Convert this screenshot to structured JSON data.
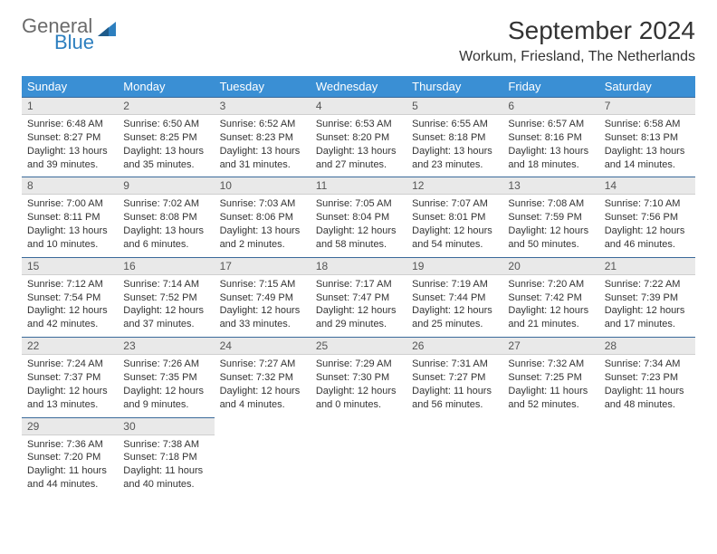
{
  "logo": {
    "line1": "General",
    "line2": "Blue",
    "shape_color": "#2d7fbf"
  },
  "title": "September 2024",
  "location": "Workum, Friesland, The Netherlands",
  "headers_bg": "#3a8fd4",
  "daynum_bg": "#e9e9e9",
  "daynum_border_top": "#3a6a9a",
  "day_names": [
    "Sunday",
    "Monday",
    "Tuesday",
    "Wednesday",
    "Thursday",
    "Friday",
    "Saturday"
  ],
  "weeks": [
    [
      {
        "n": "1",
        "sunrise": "6:48 AM",
        "sunset": "8:27 PM",
        "daylight": "13 hours and 39 minutes."
      },
      {
        "n": "2",
        "sunrise": "6:50 AM",
        "sunset": "8:25 PM",
        "daylight": "13 hours and 35 minutes."
      },
      {
        "n": "3",
        "sunrise": "6:52 AM",
        "sunset": "8:23 PM",
        "daylight": "13 hours and 31 minutes."
      },
      {
        "n": "4",
        "sunrise": "6:53 AM",
        "sunset": "8:20 PM",
        "daylight": "13 hours and 27 minutes."
      },
      {
        "n": "5",
        "sunrise": "6:55 AM",
        "sunset": "8:18 PM",
        "daylight": "13 hours and 23 minutes."
      },
      {
        "n": "6",
        "sunrise": "6:57 AM",
        "sunset": "8:16 PM",
        "daylight": "13 hours and 18 minutes."
      },
      {
        "n": "7",
        "sunrise": "6:58 AM",
        "sunset": "8:13 PM",
        "daylight": "13 hours and 14 minutes."
      }
    ],
    [
      {
        "n": "8",
        "sunrise": "7:00 AM",
        "sunset": "8:11 PM",
        "daylight": "13 hours and 10 minutes."
      },
      {
        "n": "9",
        "sunrise": "7:02 AM",
        "sunset": "8:08 PM",
        "daylight": "13 hours and 6 minutes."
      },
      {
        "n": "10",
        "sunrise": "7:03 AM",
        "sunset": "8:06 PM",
        "daylight": "13 hours and 2 minutes."
      },
      {
        "n": "11",
        "sunrise": "7:05 AM",
        "sunset": "8:04 PM",
        "daylight": "12 hours and 58 minutes."
      },
      {
        "n": "12",
        "sunrise": "7:07 AM",
        "sunset": "8:01 PM",
        "daylight": "12 hours and 54 minutes."
      },
      {
        "n": "13",
        "sunrise": "7:08 AM",
        "sunset": "7:59 PM",
        "daylight": "12 hours and 50 minutes."
      },
      {
        "n": "14",
        "sunrise": "7:10 AM",
        "sunset": "7:56 PM",
        "daylight": "12 hours and 46 minutes."
      }
    ],
    [
      {
        "n": "15",
        "sunrise": "7:12 AM",
        "sunset": "7:54 PM",
        "daylight": "12 hours and 42 minutes."
      },
      {
        "n": "16",
        "sunrise": "7:14 AM",
        "sunset": "7:52 PM",
        "daylight": "12 hours and 37 minutes."
      },
      {
        "n": "17",
        "sunrise": "7:15 AM",
        "sunset": "7:49 PM",
        "daylight": "12 hours and 33 minutes."
      },
      {
        "n": "18",
        "sunrise": "7:17 AM",
        "sunset": "7:47 PM",
        "daylight": "12 hours and 29 minutes."
      },
      {
        "n": "19",
        "sunrise": "7:19 AM",
        "sunset": "7:44 PM",
        "daylight": "12 hours and 25 minutes."
      },
      {
        "n": "20",
        "sunrise": "7:20 AM",
        "sunset": "7:42 PM",
        "daylight": "12 hours and 21 minutes."
      },
      {
        "n": "21",
        "sunrise": "7:22 AM",
        "sunset": "7:39 PM",
        "daylight": "12 hours and 17 minutes."
      }
    ],
    [
      {
        "n": "22",
        "sunrise": "7:24 AM",
        "sunset": "7:37 PM",
        "daylight": "12 hours and 13 minutes."
      },
      {
        "n": "23",
        "sunrise": "7:26 AM",
        "sunset": "7:35 PM",
        "daylight": "12 hours and 9 minutes."
      },
      {
        "n": "24",
        "sunrise": "7:27 AM",
        "sunset": "7:32 PM",
        "daylight": "12 hours and 4 minutes."
      },
      {
        "n": "25",
        "sunrise": "7:29 AM",
        "sunset": "7:30 PM",
        "daylight": "12 hours and 0 minutes."
      },
      {
        "n": "26",
        "sunrise": "7:31 AM",
        "sunset": "7:27 PM",
        "daylight": "11 hours and 56 minutes."
      },
      {
        "n": "27",
        "sunrise": "7:32 AM",
        "sunset": "7:25 PM",
        "daylight": "11 hours and 52 minutes."
      },
      {
        "n": "28",
        "sunrise": "7:34 AM",
        "sunset": "7:23 PM",
        "daylight": "11 hours and 48 minutes."
      }
    ],
    [
      {
        "n": "29",
        "sunrise": "7:36 AM",
        "sunset": "7:20 PM",
        "daylight": "11 hours and 44 minutes."
      },
      {
        "n": "30",
        "sunrise": "7:38 AM",
        "sunset": "7:18 PM",
        "daylight": "11 hours and 40 minutes."
      },
      null,
      null,
      null,
      null,
      null
    ]
  ],
  "labels": {
    "sunrise": "Sunrise:",
    "sunset": "Sunset:",
    "daylight": "Daylight:"
  }
}
